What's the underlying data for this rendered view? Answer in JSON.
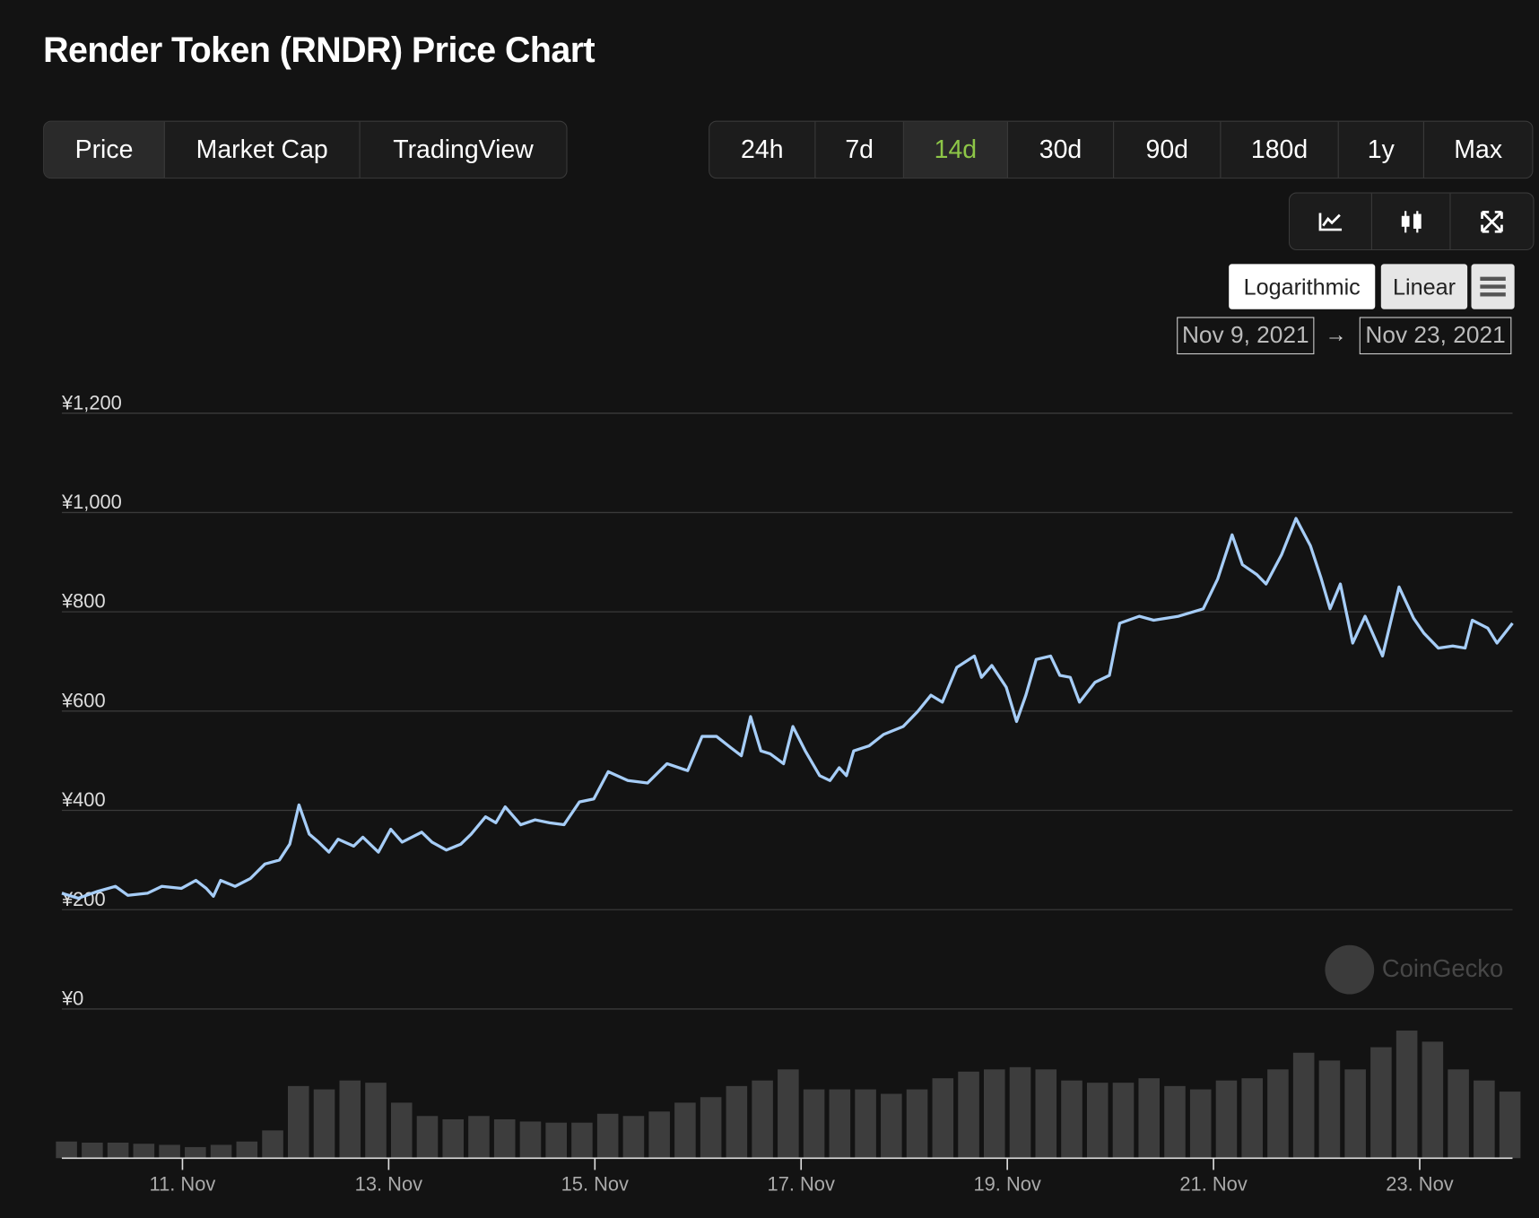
{
  "header": {
    "title": "Render Token (RNDR) Price Chart"
  },
  "tabs": {
    "items": [
      "Price",
      "Market Cap",
      "TradingView"
    ],
    "selected": 0
  },
  "ranges": {
    "items": [
      "24h",
      "7d",
      "14d",
      "30d",
      "90d",
      "180d",
      "1y",
      "Max"
    ],
    "selected": 2
  },
  "scale_buttons": [
    "Logarithmic",
    "Linear"
  ],
  "date_range": {
    "from": "Nov 9, 2021",
    "to": "Nov 23, 2021"
  },
  "watermark": "CoinGecko",
  "chart_data": {
    "type": "line",
    "color": "#a6cdf7",
    "grid": true,
    "x": [
      9.83,
      9.99,
      10.18,
      10.35,
      10.47,
      10.66,
      10.8,
      10.99,
      11.13,
      11.23,
      11.3,
      11.37,
      11.51,
      11.66,
      11.8,
      11.94,
      12.04,
      12.13,
      12.23,
      12.32,
      12.42,
      12.51,
      12.66,
      12.75,
      12.9,
      13.02,
      13.13,
      13.32,
      13.42,
      13.56,
      13.7,
      13.8,
      13.94,
      14.04,
      14.13,
      14.28,
      14.42,
      14.56,
      14.7,
      14.85,
      14.99,
      15.13,
      15.32,
      15.51,
      15.7,
      15.9,
      16.04,
      16.18,
      16.32,
      16.42,
      16.51,
      16.61,
      16.7,
      16.83,
      16.92,
      17.04,
      17.18,
      17.28,
      17.37,
      17.44,
      17.51,
      17.66,
      17.8,
      17.99,
      18.13,
      18.26,
      18.37,
      18.51,
      18.68,
      18.75,
      18.85,
      18.99,
      19.09,
      19.18,
      19.28,
      19.42,
      19.51,
      19.61,
      19.7,
      19.85,
      19.99,
      20.09,
      20.28,
      20.42,
      20.66,
      20.9,
      21.04,
      21.18,
      21.28,
      21.42,
      21.51,
      21.66,
      21.8,
      21.94,
      22.04,
      22.13,
      22.23,
      22.35,
      22.47,
      22.64,
      22.8,
      22.94,
      23.04,
      23.18,
      23.32,
      23.44,
      23.51,
      23.66,
      23.75,
      23.9
    ],
    "series": [
      {
        "values": [
          233,
          223,
          237,
          247,
          229,
          233,
          247,
          243,
          259,
          243,
          227,
          259,
          247,
          263,
          292,
          300,
          332,
          411,
          352,
          336,
          316,
          342,
          328,
          346,
          316,
          362,
          336,
          356,
          336,
          320,
          332,
          352,
          387,
          375,
          407,
          371,
          381,
          375,
          371,
          417,
          423,
          478,
          460,
          455,
          494,
          480,
          549,
          549,
          526,
          510,
          589,
          520,
          514,
          494,
          569,
          520,
          470,
          460,
          486,
          470,
          520,
          530,
          553,
          569,
          599,
          632,
          618,
          688,
          711,
          668,
          692,
          648,
          579,
          632,
          704,
          711,
          672,
          668,
          618,
          658,
          672,
          777,
          791,
          783,
          791,
          806,
          866,
          955,
          895,
          875,
          856,
          915,
          988,
          933,
          870,
          806,
          856,
          737,
          791,
          711,
          850,
          787,
          757,
          727,
          731,
          727,
          783,
          767,
          737,
          777
        ]
      }
    ],
    "xlim": [
      9.83,
      23.9
    ],
    "xticks": [
      {
        "value": 11,
        "label": "11. Nov"
      },
      {
        "value": 13,
        "label": "13. Nov"
      },
      {
        "value": 15,
        "label": "15. Nov"
      },
      {
        "value": 17,
        "label": "17. Nov"
      },
      {
        "value": 19,
        "label": "19. Nov"
      },
      {
        "value": 21,
        "label": "21. Nov"
      },
      {
        "value": 23,
        "label": "23. Nov"
      }
    ],
    "ylim": [
      0,
      1200
    ],
    "yticks": [
      {
        "value": 0,
        "label": "¥0"
      },
      {
        "value": 200,
        "label": "¥200"
      },
      {
        "value": 400,
        "label": "¥400"
      },
      {
        "value": 600,
        "label": "¥600"
      },
      {
        "value": 800,
        "label": "¥800"
      },
      {
        "value": 1000,
        "label": "¥1,000"
      },
      {
        "value": 1200,
        "label": "¥1,200"
      }
    ],
    "volume": {
      "color": "#3d3d3d",
      "x": [
        9.875,
        10.125,
        10.375,
        10.625,
        10.875,
        11.125,
        11.375,
        11.625,
        11.875,
        12.125,
        12.375,
        12.625,
        12.875,
        13.125,
        13.375,
        13.625,
        13.875,
        14.125,
        14.375,
        14.625,
        14.875,
        15.125,
        15.375,
        15.625,
        15.875,
        16.125,
        16.375,
        16.625,
        16.875,
        17.125,
        17.375,
        17.625,
        17.875,
        18.125,
        18.375,
        18.625,
        18.875,
        19.125,
        19.375,
        19.625,
        19.875,
        20.125,
        20.375,
        20.625,
        20.875,
        21.125,
        21.375,
        21.625,
        21.875,
        22.125,
        22.375,
        22.625,
        22.875,
        23.125,
        23.375,
        23.625,
        23.875
      ],
      "values": [
        15,
        14,
        14,
        13,
        12,
        10,
        12,
        15,
        25,
        65,
        62,
        70,
        68,
        50,
        38,
        35,
        38,
        35,
        33,
        32,
        32,
        40,
        38,
        42,
        50,
        55,
        65,
        70,
        80,
        62,
        62,
        62,
        58,
        62,
        72,
        78,
        80,
        82,
        80,
        70,
        68,
        68,
        72,
        65,
        62,
        70,
        72,
        80,
        95,
        88,
        80,
        100,
        115,
        105,
        80,
        70,
        60
      ]
    }
  }
}
